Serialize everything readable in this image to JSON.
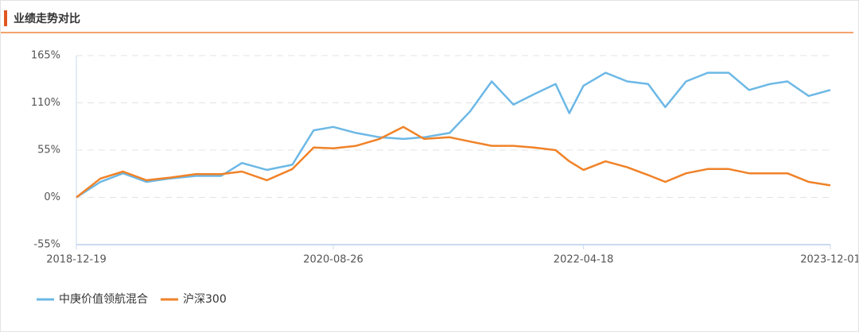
{
  "chart_data": {
    "type": "line",
    "title": "业绩走势对比",
    "x": [
      "2018-12-19",
      "2019-02-15",
      "2019-04-10",
      "2019-06-05",
      "2019-08-01",
      "2019-10-01",
      "2019-12-01",
      "2020-01-20",
      "2020-03-20",
      "2020-05-20",
      "2020-07-10",
      "2020-08-26",
      "2020-10-20",
      "2020-12-15",
      "2021-02-10",
      "2021-04-01",
      "2021-06-01",
      "2021-07-20",
      "2021-09-10",
      "2021-11-01",
      "2021-12-20",
      "2022-02-10",
      "2022-03-15",
      "2022-04-18",
      "2022-06-10",
      "2022-08-01",
      "2022-09-20",
      "2022-10-31",
      "2022-12-20",
      "2023-02-10",
      "2023-04-01",
      "2023-05-20",
      "2023-07-10",
      "2023-08-20",
      "2023-10-10",
      "2023-12-01"
    ],
    "series": [
      {
        "name": "中庚价值领航混合",
        "color": "#6cb8e6",
        "values": [
          0,
          18,
          28,
          18,
          22,
          25,
          25,
          40,
          32,
          38,
          78,
          82,
          75,
          70,
          68,
          70,
          75,
          100,
          135,
          108,
          120,
          132,
          98,
          130,
          145,
          135,
          132,
          105,
          135,
          145,
          145,
          125,
          132,
          135,
          118,
          125
        ]
      },
      {
        "name": "沪深300",
        "color": "#f08228",
        "values": [
          0,
          22,
          30,
          20,
          23,
          27,
          27,
          30,
          20,
          33,
          58,
          57,
          60,
          68,
          82,
          68,
          70,
          65,
          60,
          60,
          58,
          55,
          42,
          32,
          42,
          35,
          26,
          18,
          28,
          33,
          33,
          28,
          28,
          28,
          18,
          14
        ]
      }
    ],
    "xlim": [
      "2018-12-19",
      "2023-12-01"
    ],
    "xticks": [
      "2018-12-19",
      "2020-08-26",
      "2022-04-18",
      "2023-12-01"
    ],
    "ylim": [
      -55,
      165
    ],
    "yticks": [
      {
        "value": -55,
        "label": "-55%"
      },
      {
        "value": 0,
        "label": "0%"
      },
      {
        "value": 55,
        "label": "55%"
      },
      {
        "value": 110,
        "label": "110%"
      },
      {
        "value": 165,
        "label": "165%"
      }
    ],
    "grid": true
  }
}
